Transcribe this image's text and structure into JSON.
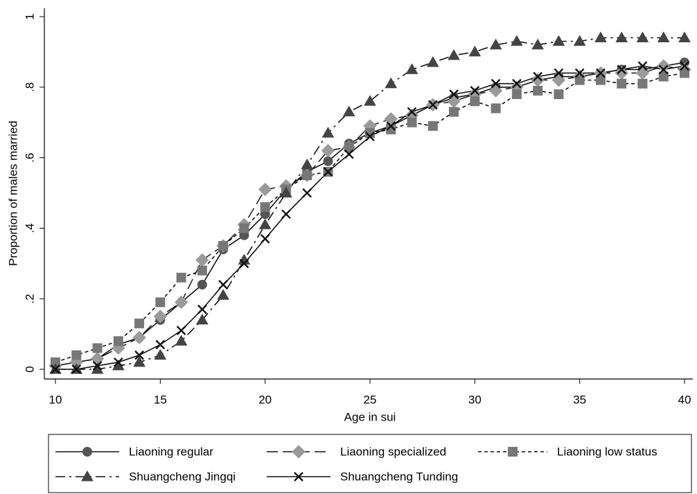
{
  "chart_data": {
    "type": "line",
    "xlabel": "Age in sui",
    "ylabel": "Proportion of males married",
    "x": [
      10,
      11,
      12,
      13,
      14,
      15,
      16,
      17,
      18,
      19,
      20,
      21,
      22,
      23,
      24,
      25,
      26,
      27,
      28,
      29,
      30,
      31,
      32,
      33,
      34,
      35,
      36,
      37,
      38,
      39,
      40
    ],
    "xlim": [
      10,
      40
    ],
    "xticks": [
      10,
      15,
      20,
      25,
      30,
      35,
      40
    ],
    "ylim": [
      0,
      1
    ],
    "yticks": [
      0,
      {
        "value": 0.2,
        "label": ".2"
      },
      {
        "value": 0.4,
        "label": ".4"
      },
      {
        "value": 0.6,
        "label": ".6"
      },
      {
        "value": 0.8,
        "label": ".8"
      },
      1
    ],
    "grid": false,
    "legend": "bottom",
    "series": [
      {
        "name": "Liaoning regular",
        "color": "#555555",
        "marker": "circle",
        "dash": "solid",
        "values": [
          0.01,
          0.02,
          0.03,
          0.07,
          0.09,
          0.14,
          0.19,
          0.24,
          0.34,
          0.38,
          0.44,
          0.51,
          0.56,
          0.59,
          0.64,
          0.67,
          0.69,
          0.72,
          0.75,
          0.77,
          0.78,
          0.8,
          0.8,
          0.82,
          0.83,
          0.83,
          0.84,
          0.85,
          0.85,
          0.86,
          0.87
        ]
      },
      {
        "name": "Liaoning specialized",
        "color": "#9a9a9a",
        "marker": "diamond",
        "dash": "long",
        "values": [
          0.01,
          0.02,
          0.03,
          0.06,
          0.09,
          0.15,
          0.19,
          0.31,
          0.35,
          0.41,
          0.51,
          0.52,
          0.55,
          0.62,
          0.63,
          0.69,
          0.71,
          0.72,
          0.75,
          0.76,
          0.78,
          0.79,
          0.8,
          0.82,
          0.82,
          0.83,
          0.84,
          0.84,
          0.84,
          0.86,
          0.85
        ]
      },
      {
        "name": "Liaoning low status",
        "color": "#777777",
        "marker": "square",
        "dash": "short",
        "values": [
          0.02,
          0.04,
          0.06,
          0.08,
          0.13,
          0.19,
          0.26,
          0.28,
          0.35,
          0.4,
          0.46,
          0.51,
          0.55,
          0.56,
          0.63,
          0.67,
          0.68,
          0.7,
          0.69,
          0.73,
          0.76,
          0.74,
          0.78,
          0.79,
          0.78,
          0.82,
          0.82,
          0.81,
          0.81,
          0.83,
          0.84
        ]
      },
      {
        "name": "Shuangcheng Jingqi",
        "color": "#444444",
        "marker": "triangle",
        "dash": "dashdot",
        "values": [
          0,
          0,
          0,
          0.01,
          0.02,
          0.04,
          0.08,
          0.14,
          0.21,
          0.31,
          0.41,
          0.5,
          0.58,
          0.67,
          0.73,
          0.76,
          0.81,
          0.85,
          0.87,
          0.89,
          0.9,
          0.92,
          0.93,
          0.92,
          0.93,
          0.93,
          0.94,
          0.94,
          0.94,
          0.94,
          0.94
        ]
      },
      {
        "name": "Shuangcheng Tunding",
        "color": "#111111",
        "marker": "x",
        "dash": "solid",
        "values": [
          0,
          0,
          0.01,
          0.02,
          0.04,
          0.07,
          0.11,
          0.17,
          0.24,
          0.3,
          0.37,
          0.44,
          0.5,
          0.56,
          0.61,
          0.66,
          0.69,
          0.73,
          0.75,
          0.78,
          0.79,
          0.81,
          0.81,
          0.83,
          0.84,
          0.84,
          0.84,
          0.85,
          0.86,
          0.85,
          0.86
        ]
      }
    ]
  }
}
